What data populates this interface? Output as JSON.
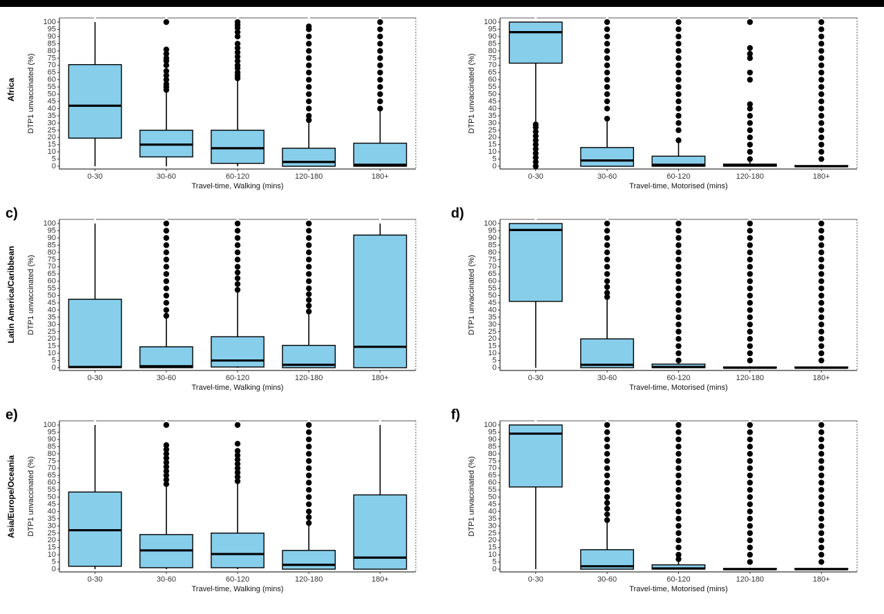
{
  "colors": {
    "box_fill": "#87ceeb",
    "stroke": "#000000"
  },
  "chart_data": [
    {
      "type": "boxplot",
      "panel": "",
      "row_label": "Africa",
      "xlabel": "Travel-time, Walking (mins)",
      "ylabel": "DTP1 unvaccinated (%)",
      "ylim": [
        0,
        100
      ],
      "yticks": [
        0,
        5,
        10,
        15,
        20,
        25,
        30,
        35,
        40,
        45,
        50,
        55,
        60,
        65,
        70,
        75,
        80,
        85,
        90,
        95,
        100
      ],
      "categories": [
        "0-30",
        "30-60",
        "60-120",
        "120-180",
        "180+"
      ],
      "boxes": [
        {
          "min": 0,
          "q1": 19.5,
          "median": 42,
          "q3": 70.5,
          "max": 100,
          "outliers": []
        },
        {
          "min": 0,
          "q1": 6.5,
          "median": 15,
          "q3": 25,
          "max": 52,
          "outliers": [
            53,
            55,
            57,
            60,
            63,
            66,
            70,
            73,
            75,
            78,
            81,
            100
          ]
        },
        {
          "min": 0,
          "q1": 2,
          "median": 12.5,
          "q3": 25,
          "max": 60,
          "outliers": [
            61,
            63,
            65,
            68,
            70,
            73,
            76,
            79,
            82,
            85,
            90,
            93,
            96,
            98,
            100
          ]
        },
        {
          "min": 0,
          "q1": 0,
          "median": 3,
          "q3": 12.5,
          "max": 30,
          "outliers": [
            32,
            35,
            40,
            45,
            50,
            55,
            60,
            65,
            70,
            75,
            80,
            85,
            90,
            95,
            97
          ]
        },
        {
          "min": 0,
          "q1": 0,
          "median": 1,
          "q3": 16,
          "max": 40,
          "outliers": [
            40,
            45,
            50,
            55,
            60,
            65,
            70,
            75,
            80,
            85,
            90,
            95,
            100
          ]
        }
      ]
    },
    {
      "type": "boxplot",
      "panel": "",
      "row_label": "",
      "xlabel": "Travel-time, Motorised (mins)",
      "ylabel": "DTP1 unvaccinated (%)",
      "ylim": [
        0,
        100
      ],
      "yticks": [
        0,
        5,
        10,
        15,
        20,
        25,
        30,
        35,
        40,
        45,
        50,
        55,
        60,
        65,
        70,
        75,
        80,
        85,
        90,
        95,
        100
      ],
      "categories": [
        "0-30",
        "30-60",
        "60-120",
        "120-180",
        "180+"
      ],
      "boxes": [
        {
          "min": 30,
          "q1": 71.5,
          "median": 93,
          "q3": 100,
          "max": 100,
          "outliers": [
            0,
            3,
            6,
            9,
            12,
            15,
            18,
            21,
            24,
            27,
            29
          ]
        },
        {
          "min": 0,
          "q1": 0,
          "median": 4,
          "q3": 13,
          "max": 32,
          "outliers": [
            33,
            40,
            45,
            50,
            55,
            60,
            65,
            70,
            75,
            80,
            85,
            90,
            95,
            100
          ]
        },
        {
          "min": 0,
          "q1": 0,
          "median": 1,
          "q3": 7,
          "max": 17,
          "outliers": [
            18,
            25,
            30,
            35,
            40,
            45,
            50,
            55,
            60,
            65,
            70,
            75,
            80,
            85,
            90,
            95,
            100
          ]
        },
        {
          "min": 0,
          "q1": 0,
          "median": 0.5,
          "q3": 1.5,
          "max": 4,
          "outliers": [
            5,
            10,
            15,
            20,
            25,
            30,
            35,
            40,
            43,
            60,
            65,
            75,
            78,
            82,
            100
          ]
        },
        {
          "min": 0,
          "q1": 0,
          "median": 0,
          "q3": 0.5,
          "max": 1,
          "outliers": [
            5,
            10,
            15,
            20,
            25,
            30,
            35,
            40,
            45,
            50,
            55,
            60,
            65,
            70,
            75,
            80,
            85,
            90,
            95,
            100
          ]
        }
      ]
    },
    {
      "type": "boxplot",
      "panel": "c)",
      "row_label": "Latin America/Caribbean",
      "xlabel": "Travel-time, Walking (mins)",
      "ylabel": "DTP1 unvaccinated (%)",
      "ylim": [
        0,
        100
      ],
      "yticks": [
        0,
        5,
        10,
        15,
        20,
        25,
        30,
        35,
        40,
        45,
        50,
        55,
        60,
        65,
        70,
        75,
        80,
        85,
        90,
        95,
        100
      ],
      "categories": [
        "0-30",
        "30-60",
        "60-120",
        "120-180",
        "180+"
      ],
      "boxes": [
        {
          "min": 0,
          "q1": 0,
          "median": 0.5,
          "q3": 47.5,
          "max": 100,
          "outliers": []
        },
        {
          "min": 0,
          "q1": 0,
          "median": 1,
          "q3": 14.5,
          "max": 35,
          "outliers": [
            36,
            40,
            45,
            50,
            55,
            60,
            65,
            70,
            75,
            80,
            85,
            90,
            95,
            100
          ]
        },
        {
          "min": 0,
          "q1": 0.5,
          "median": 5,
          "q3": 21.5,
          "max": 53,
          "outliers": [
            54,
            58,
            62,
            66,
            70,
            75,
            80,
            85,
            90,
            95,
            100
          ]
        },
        {
          "min": 0,
          "q1": 0,
          "median": 2,
          "q3": 15.5,
          "max": 38,
          "outliers": [
            39,
            43,
            47,
            51,
            55,
            60,
            65,
            70,
            75,
            80,
            85,
            90,
            95,
            100
          ]
        },
        {
          "min": 0,
          "q1": 0,
          "median": 14.5,
          "q3": 92,
          "max": 100,
          "outliers": []
        }
      ]
    },
    {
      "type": "boxplot",
      "panel": "d)",
      "row_label": "",
      "xlabel": "Travel-time, Motorised (mins)",
      "ylabel": "DTP1 unvaccinated (%)",
      "ylim": [
        0,
        100
      ],
      "yticks": [
        0,
        5,
        10,
        15,
        20,
        25,
        30,
        35,
        40,
        45,
        50,
        55,
        60,
        65,
        70,
        75,
        80,
        85,
        90,
        95,
        100
      ],
      "categories": [
        "0-30",
        "30-60",
        "60-120",
        "120-180",
        "180+"
      ],
      "boxes": [
        {
          "min": 0,
          "q1": 46,
          "median": 95.5,
          "q3": 100,
          "max": 100,
          "outliers": []
        },
        {
          "min": 0,
          "q1": 0,
          "median": 2,
          "q3": 20,
          "max": 48,
          "outliers": [
            49,
            52,
            56,
            60,
            65,
            70,
            75,
            80,
            85,
            90,
            95,
            100
          ]
        },
        {
          "min": 0,
          "q1": 0,
          "median": 0.5,
          "q3": 2.5,
          "max": 5,
          "outliers": [
            5,
            10,
            15,
            20,
            25,
            30,
            35,
            40,
            45,
            50,
            55,
            60,
            65,
            70,
            75,
            80,
            85,
            90,
            95,
            100
          ]
        },
        {
          "min": 0,
          "q1": 0,
          "median": 0,
          "q3": 0.5,
          "max": 1,
          "outliers": [
            5,
            10,
            15,
            20,
            25,
            30,
            35,
            40,
            45,
            50,
            55,
            60,
            65,
            70,
            75,
            80,
            85,
            90,
            95,
            100
          ]
        },
        {
          "min": 0,
          "q1": 0,
          "median": 0,
          "q3": 0.5,
          "max": 1,
          "outliers": [
            5,
            10,
            15,
            20,
            25,
            30,
            35,
            40,
            45,
            50,
            55,
            60,
            65,
            70,
            75,
            80,
            85,
            90,
            95,
            100
          ]
        }
      ]
    },
    {
      "type": "boxplot",
      "panel": "e)",
      "row_label": "Asia/Europe/Oceania",
      "xlabel": "Travel-time, Walking (mins)",
      "ylabel": "DTP1 unvaccinated (%)",
      "ylim": [
        0,
        100
      ],
      "yticks": [
        0,
        5,
        10,
        15,
        20,
        25,
        30,
        35,
        40,
        45,
        50,
        55,
        60,
        65,
        70,
        75,
        80,
        85,
        90,
        95,
        100
      ],
      "categories": [
        "0-30",
        "30-60",
        "60-120",
        "120-180",
        "180+"
      ],
      "boxes": [
        {
          "min": 0,
          "q1": 2,
          "median": 27,
          "q3": 53.5,
          "max": 100,
          "outliers": []
        },
        {
          "min": 0,
          "q1": 1,
          "median": 13,
          "q3": 24,
          "max": 58,
          "outliers": [
            59,
            62,
            65,
            68,
            71,
            74,
            77,
            80,
            83,
            86,
            100
          ]
        },
        {
          "min": 0,
          "q1": 1,
          "median": 10.5,
          "q3": 25,
          "max": 60,
          "outliers": [
            61,
            64,
            67,
            70,
            73,
            76,
            79,
            82,
            87,
            100
          ]
        },
        {
          "min": 0,
          "q1": 0,
          "median": 3,
          "q3": 13,
          "max": 31,
          "outliers": [
            32,
            36,
            40,
            45,
            50,
            55,
            60,
            65,
            70,
            75,
            80,
            85,
            90,
            95,
            100
          ]
        },
        {
          "min": 0,
          "q1": 0,
          "median": 8,
          "q3": 51.5,
          "max": 100,
          "outliers": []
        }
      ]
    },
    {
      "type": "boxplot",
      "panel": "f)",
      "row_label": "",
      "xlabel": "Travel-time, Motorised (mins)",
      "ylabel": "DTP1 unvaccinated (%)",
      "ylim": [
        0,
        100
      ],
      "yticks": [
        0,
        5,
        10,
        15,
        20,
        25,
        30,
        35,
        40,
        45,
        50,
        55,
        60,
        65,
        70,
        75,
        80,
        85,
        90,
        95,
        100
      ],
      "categories": [
        "0-30",
        "30-60",
        "60-120",
        "120-180",
        "180+"
      ],
      "boxes": [
        {
          "min": 0,
          "q1": 57,
          "median": 94,
          "q3": 100,
          "max": 100,
          "outliers": []
        },
        {
          "min": 0,
          "q1": 0,
          "median": 2,
          "q3": 13.5,
          "max": 33,
          "outliers": [
            34,
            38,
            42,
            46,
            50,
            55,
            60,
            65,
            70,
            75,
            80,
            85,
            90,
            95,
            100
          ]
        },
        {
          "min": 0,
          "q1": 0,
          "median": 0.5,
          "q3": 3,
          "max": 6,
          "outliers": [
            7,
            10,
            15,
            20,
            25,
            30,
            35,
            40,
            45,
            50,
            55,
            60,
            65,
            70,
            75,
            80,
            85,
            90,
            95,
            100
          ]
        },
        {
          "min": 0,
          "q1": 0,
          "median": 0,
          "q3": 0.5,
          "max": 1,
          "outliers": [
            5,
            10,
            15,
            20,
            25,
            30,
            35,
            40,
            45,
            50,
            55,
            60,
            65,
            70,
            75,
            80,
            85,
            90,
            95,
            100
          ]
        },
        {
          "min": 0,
          "q1": 0,
          "median": 0,
          "q3": 0.5,
          "max": 1,
          "outliers": [
            5,
            10,
            15,
            20,
            25,
            30,
            35,
            40,
            45,
            50,
            55,
            60,
            65,
            70,
            75,
            80,
            85,
            90,
            95,
            100
          ]
        }
      ]
    }
  ]
}
